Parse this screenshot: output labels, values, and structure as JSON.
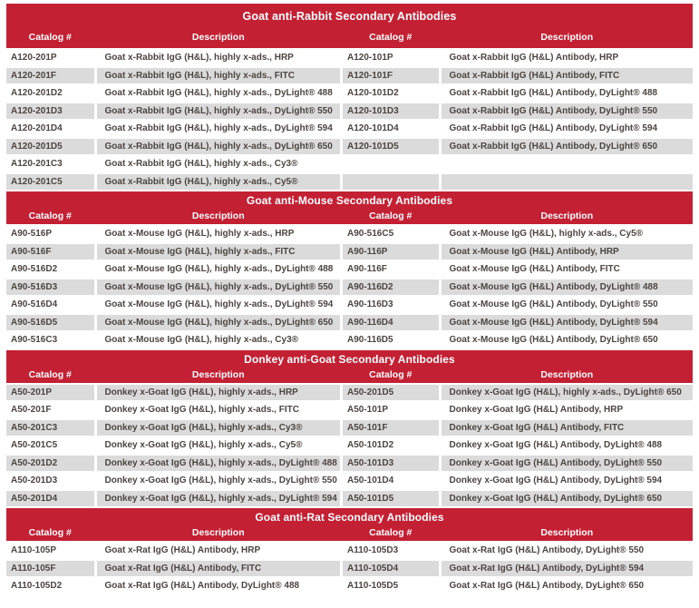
{
  "colors": {
    "header_red": "#c32033",
    "row_shaded_gray": "#dbdbdb",
    "row_white": "#ffffff",
    "header_text_white": "#ffffff",
    "body_text": "#4d453f"
  },
  "column_headers": {
    "catalog": "Catalog #",
    "description": "Description"
  },
  "sections": [
    {
      "title": "Goat anti-Rabbit Secondary Antibodies",
      "first_row_shaded": false,
      "rows": [
        {
          "cells": [
            "A120-201P",
            "Goat x-Rabbit IgG (H&L), highly x-ads., HRP",
            "A120-101P",
            "Goat x-Rabbit IgG (H&L) Antibody, HRP"
          ]
        },
        {
          "cells": [
            "A120-201F",
            "Goat x-Rabbit IgG (H&L), highly x-ads., FITC",
            "A120-101F",
            "Goat x-Rabbit IgG (H&L) Antibody, FITC"
          ]
        },
        {
          "cells": [
            "A120-201D2",
            "Goat x-Rabbit IgG (H&L), highly x-ads., DyLight® 488",
            "A120-101D2",
            "Goat x-Rabbit IgG (H&L) Antibody, DyLight® 488"
          ]
        },
        {
          "cells": [
            "A120-201D3",
            "Goat x-Rabbit IgG (H&L), highly x-ads., DyLight® 550",
            "A120-101D3",
            "Goat x-Rabbit IgG (H&L) Antibody, DyLight® 550"
          ]
        },
        {
          "cells": [
            "A120-201D4",
            "Goat x-Rabbit IgG (H&L), highly x-ads., DyLight® 594",
            "A120-101D4",
            "Goat x-Rabbit IgG (H&L) Antibody, DyLight® 594"
          ]
        },
        {
          "cells": [
            "A120-201D5",
            "Goat x-Rabbit IgG (H&L), highly x-ads., DyLight® 650",
            "A120-101D5",
            "Goat x-Rabbit IgG (H&L) Antibody, DyLight® 650"
          ]
        },
        {
          "cells": [
            "A120-201C3",
            "Goat x-Rabbit IgG (H&L), highly x-ads., Cy3®",
            "",
            ""
          ]
        },
        {
          "cells": [
            "A120-201C5",
            "Goat x-Rabbit IgG (H&L), highly x-ads., Cy5®",
            "",
            ""
          ]
        }
      ]
    },
    {
      "title": "Goat anti-Mouse Secondary Antibodies",
      "first_row_shaded": false,
      "rows": [
        {
          "cells": [
            "A90-516P",
            "Goat x-Mouse IgG (H&L), highly x-ads., HRP",
            "A90-516C5",
            "Goat x-Mouse IgG (H&L), highly x-ads., Cy5®"
          ]
        },
        {
          "cells": [
            "A90-516F",
            "Goat x-Mouse IgG (H&L), highly x-ads., FITC",
            "A90-116P",
            "Goat x-Mouse IgG (H&L) Antibody, HRP"
          ]
        },
        {
          "cells": [
            "A90-516D2",
            "Goat x-Mouse IgG (H&L), highly x-ads., DyLight® 488",
            "A90-116F",
            "Goat x-Mouse IgG (H&L) Antibody, FITC"
          ]
        },
        {
          "cells": [
            "A90-516D3",
            "Goat x-Mouse IgG (H&L), highly x-ads., DyLight® 550",
            "A90-116D2",
            "Goat x-Mouse IgG (H&L) Antibody, DyLight® 488"
          ]
        },
        {
          "cells": [
            "A90-516D4",
            "Goat x-Mouse IgG (H&L), highly x-ads., DyLight® 594",
            "A90-116D3",
            "Goat x-Mouse IgG (H&L) Antibody, DyLight® 550"
          ]
        },
        {
          "cells": [
            "A90-516D5",
            "Goat x-Mouse IgG (H&L), highly x-ads., DyLight® 650",
            "A90-116D4",
            "Goat x-Mouse IgG (H&L) Antibody, DyLight® 594"
          ]
        },
        {
          "cells": [
            "A90-516C3",
            "Goat x-Mouse IgG (H&L), highly x-ads., Cy3®",
            "A90-116D5",
            "Goat x-Mouse IgG (H&L) Antibody, DyLight® 650"
          ]
        }
      ]
    },
    {
      "title": "Donkey anti-Goat Secondary Antibodies",
      "first_row_shaded": true,
      "rows": [
        {
          "cells": [
            "A50-201P",
            "Donkey x-Goat IgG (H&L), highly x-ads., HRP",
            "A50-201D5",
            "Donkey x-Goat IgG (H&L), highly x-ads., DyLight® 650"
          ]
        },
        {
          "cells": [
            "A50-201F",
            "Donkey x-Goat IgG (H&L), highly x-ads., FITC",
            "A50-101P",
            "Donkey x-Goat IgG (H&L) Antibody, HRP"
          ]
        },
        {
          "cells": [
            "A50-201C3",
            "Donkey x-Goat IgG (H&L), highly x-ads., Cy3®",
            "A50-101F",
            "Donkey x-Goat IgG (H&L) Antibody, FITC"
          ]
        },
        {
          "cells": [
            "A50-201C5",
            "Donkey x-Goat IgG (H&L), highly x-ads., Cy5®",
            "A50-101D2",
            "Donkey x-Goat IgG (H&L) Antibody, DyLight® 488"
          ]
        },
        {
          "cells": [
            "A50-201D2",
            "Donkey x-Goat IgG (H&L), highly x-ads., DyLight® 488",
            "A50-101D3",
            "Donkey x-Goat IgG (H&L) Antibody, DyLight® 550"
          ]
        },
        {
          "cells": [
            "A50-201D3",
            "Donkey x-Goat IgG (H&L), highly x-ads., DyLight® 550",
            "A50-101D4",
            "Donkey x-Goat IgG (H&L) Antibody, DyLight® 594"
          ]
        },
        {
          "cells": [
            "A50-201D4",
            "Donkey x-Goat IgG (H&L), highly x-ads., DyLight® 594",
            "A50-101D5",
            "Donkey x-Goat IgG (H&L) Antibody, DyLight® 650"
          ]
        }
      ]
    },
    {
      "title": "Goat anti-Rat Secondary Antibodies",
      "first_row_shaded": false,
      "rows": [
        {
          "cells": [
            "A110-105P",
            "Goat x-Rat IgG (H&L) Antibody, HRP",
            "A110-105D3",
            "Goat x-Rat IgG (H&L) Antibody, DyLight® 550"
          ]
        },
        {
          "cells": [
            "A110-105F",
            "Goat x-Rat IgG (H&L) Antibody, FITC",
            "A110-105D4",
            "Goat x-Rat IgG (H&L) Antibody, DyLight® 594"
          ]
        },
        {
          "cells": [
            "A110-105D2",
            "Goat x-Rat IgG (H&L) Antibody, DyLight® 488",
            "A110-105D5",
            "Goat x-Rat IgG (H&L) Antibody, DyLight® 650"
          ]
        }
      ]
    }
  ]
}
